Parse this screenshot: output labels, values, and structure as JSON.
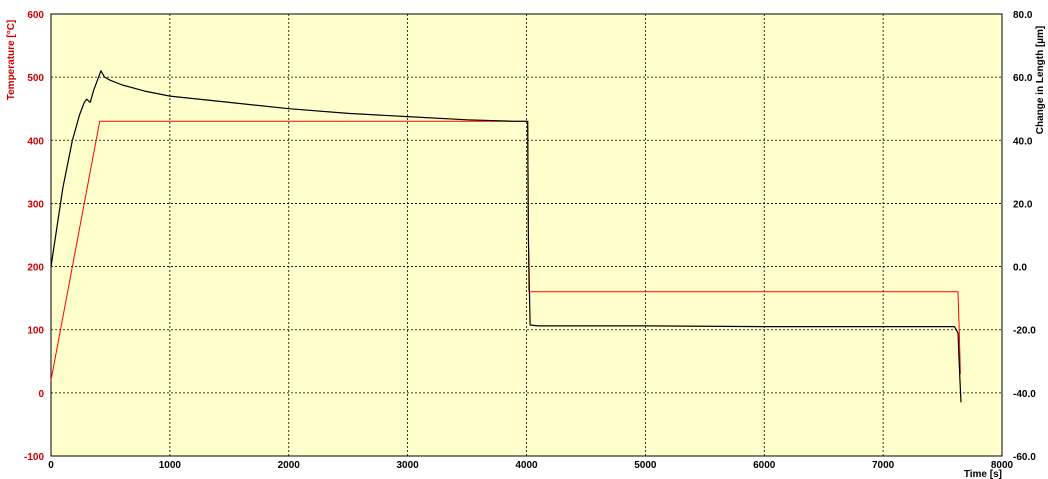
{
  "chart_data": {
    "type": "line",
    "xlabel": "Time  [s]",
    "ylabel_left": "Temperature  [°C]",
    "ylabel_right": "Change in Length  [µm]",
    "xlim": [
      0,
      8000
    ],
    "ylim_left": [
      -100,
      600
    ],
    "ylim_right": [
      -60,
      80
    ],
    "x_ticks": [
      "0",
      "1000",
      "2000",
      "3000",
      "4000",
      "5000",
      "6000",
      "7000",
      "8000"
    ],
    "y_ticks_left": [
      "-100",
      "0",
      "100",
      "200",
      "300",
      "400",
      "500",
      "600"
    ],
    "y_ticks_right": [
      "-60.0",
      "-40.0",
      "-20.0",
      "0.0",
      "20.0",
      "40.0",
      "60.0",
      "80.0"
    ],
    "grid": true,
    "colors": {
      "plot_background": "#FFFFCC",
      "temperature": "#FF0000",
      "length": "#000000",
      "left_axis_text": "#CC0000",
      "grid": "#000000"
    },
    "series": [
      {
        "axis": "left",
        "x": [
          0,
          410,
          4010,
          4020,
          7630,
          7640,
          7650
        ],
        "y": [
          20,
          430,
          430,
          160,
          160,
          100,
          30
        ]
      },
      {
        "axis": "right",
        "x": [
          0,
          100,
          180,
          240,
          280,
          300,
          330,
          360,
          390,
          420,
          450,
          500,
          600,
          800,
          1000,
          1500,
          2000,
          2500,
          3000,
          3500,
          3900,
          4010,
          4015,
          4030,
          4100,
          5000,
          6000,
          7000,
          7600,
          7630,
          7645,
          7655
        ],
        "y": [
          0,
          25,
          40,
          48,
          52,
          53,
          52,
          56,
          59,
          62,
          60,
          59,
          57.5,
          55.5,
          54,
          52,
          50,
          48.5,
          47.5,
          46.5,
          46,
          46,
          10,
          -18.5,
          -18.8,
          -18.8,
          -19,
          -19,
          -19,
          -21,
          -35,
          -43
        ]
      }
    ]
  }
}
